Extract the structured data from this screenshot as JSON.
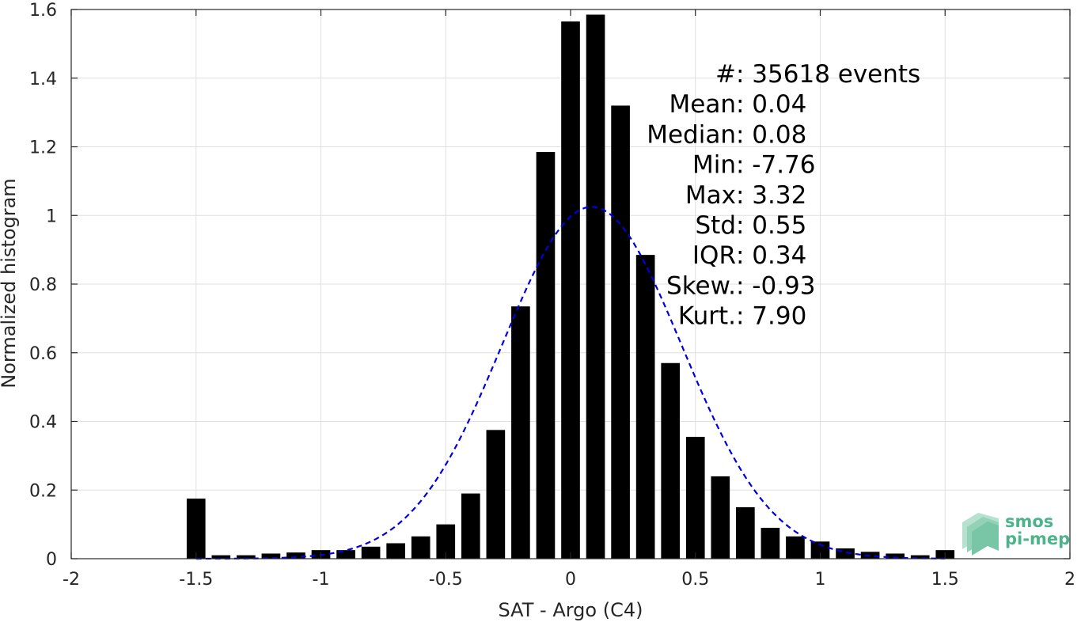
{
  "chart_data": {
    "type": "bar",
    "title": "",
    "xlabel": "SAT - Argo (C4)",
    "ylabel": "Normalized histogram",
    "xlim": [
      -2,
      2
    ],
    "ylim": [
      0,
      1.6
    ],
    "grid": true,
    "bar_width": 0.075,
    "x_ticks": [
      -2,
      -1.5,
      -1,
      -0.5,
      0,
      0.5,
      1,
      1.5,
      2
    ],
    "x_tick_labels": [
      "-2",
      "-1.5",
      "-1",
      "-0.5",
      "0",
      "0.5",
      "1",
      "1.5",
      "2"
    ],
    "y_ticks": [
      0,
      0.2,
      0.4,
      0.6,
      0.8,
      1.0,
      1.2,
      1.4,
      1.6
    ],
    "y_tick_labels": [
      "0",
      "0.2",
      "0.4",
      "0.6",
      "0.8",
      "1",
      "1.2",
      "1.4",
      "1.6"
    ],
    "bar_color": "#000000",
    "x": [
      -1.5,
      -1.4,
      -1.3,
      -1.2,
      -1.1,
      -1.0,
      -0.9,
      -0.8,
      -0.7,
      -0.6,
      -0.5,
      -0.4,
      -0.3,
      -0.2,
      -0.1,
      0.0,
      0.1,
      0.2,
      0.3,
      0.4,
      0.5,
      0.6,
      0.7,
      0.8,
      0.9,
      1.0,
      1.1,
      1.2,
      1.3,
      1.4,
      1.5
    ],
    "values": [
      0.175,
      0.01,
      0.01,
      0.015,
      0.018,
      0.025,
      0.025,
      0.035,
      0.045,
      0.065,
      0.1,
      0.19,
      0.375,
      0.735,
      1.185,
      1.565,
      1.585,
      1.32,
      0.885,
      0.57,
      0.355,
      0.24,
      0.15,
      0.09,
      0.065,
      0.05,
      0.03,
      0.02,
      0.015,
      0.01,
      0.025
    ],
    "fit_curve": {
      "type": "gaussian",
      "style": "dashed",
      "color": "#0000dd",
      "mean": 0.085,
      "std": 0.36,
      "peak": 1.025,
      "x_range": [
        -1.5,
        1.5
      ]
    },
    "stats": [
      {
        "label": "#  ",
        "value": ": 35618 events"
      },
      {
        "label": "Mean ",
        "value": ": 0.04"
      },
      {
        "label": "Median ",
        "value": ": 0.08"
      },
      {
        "label": "Min ",
        "value": ": -7.76"
      },
      {
        "label": "Max ",
        "value": ": 3.32"
      },
      {
        "label": "Std ",
        "value": ": 0.55"
      },
      {
        "label": "IQR ",
        "value": ": 0.34"
      },
      {
        "label": "Skew. ",
        "value": ": -0.93"
      },
      {
        "label": "Kurt. ",
        "value": ": 7.90"
      }
    ]
  },
  "logo": {
    "line1": "smos",
    "line2": "pi-mep",
    "color": "#4db38a"
  }
}
